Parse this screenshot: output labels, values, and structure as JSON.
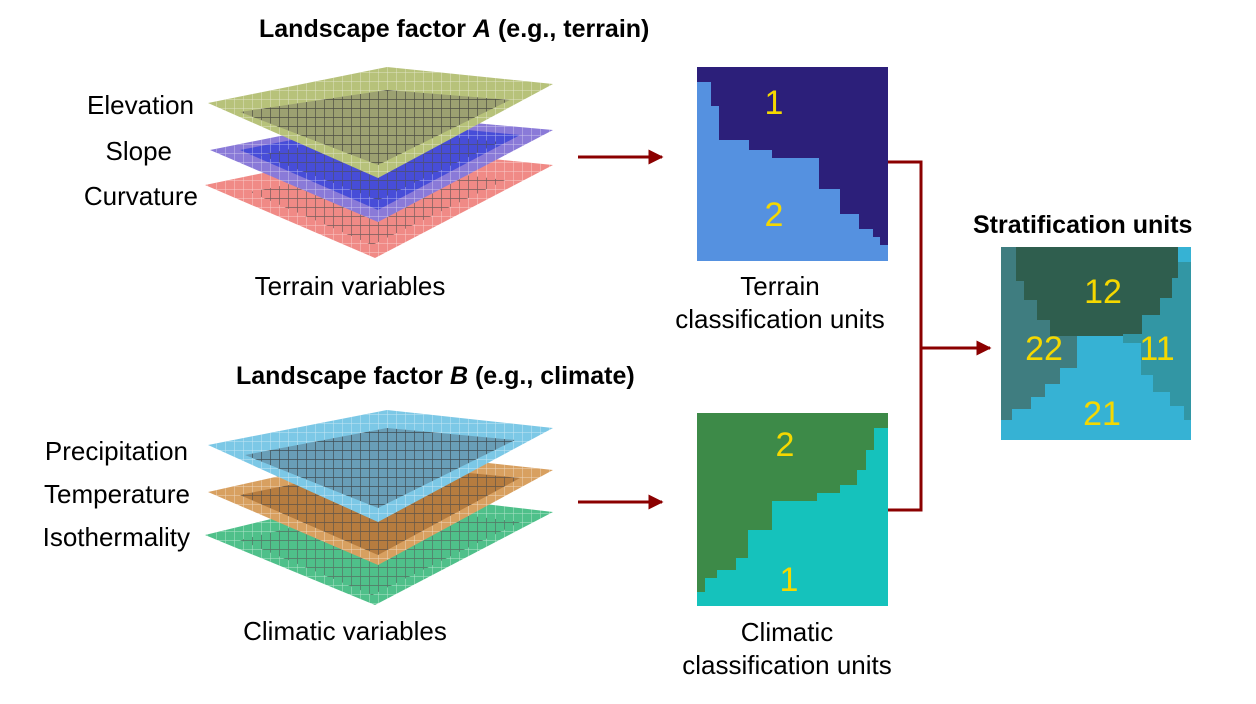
{
  "factor_a": {
    "title_prefix": "Landscape factor ",
    "title_letter": "A",
    "title_suffix": " (e.g., terrain)",
    "variables": [
      "Elevation",
      "Slope",
      "Curvature"
    ],
    "group_label": "Terrain variables",
    "unit_label_line1": "Terrain",
    "unit_label_line2": "classification units",
    "unit_numbers": [
      "1",
      "2"
    ]
  },
  "factor_b": {
    "title_prefix": "Landscape factor ",
    "title_letter": "B",
    "title_suffix": " (e.g., climate)",
    "variables": [
      "Precipitation",
      "Temperature",
      "Isothermality"
    ],
    "group_label": "Climatic variables",
    "unit_label_line1": "Climatic",
    "unit_label_line2": "classification units",
    "unit_numbers": [
      "2",
      "1"
    ]
  },
  "stratification": {
    "title": "Stratification units",
    "unit_numbers": [
      "12",
      "22",
      "11",
      "21"
    ]
  },
  "colors": {
    "terrain_dark": "#2c1f7a",
    "terrain_light": "#5591e0",
    "climate_dark": "#3d8a48",
    "climate_light": "#15c2bc",
    "strat_12": "#2f5e4e",
    "strat_22": "#3f7d80",
    "strat_11": "#3296a4",
    "strat_21": "#36b2d4",
    "arrow": "#8b0000",
    "number_text": "#f5d800",
    "layer_elevation": "#b7c27a",
    "layer_slope": "#8a7ad8",
    "layer_curvature": "#f08a86",
    "layer_precipitation": "#7cc8e6",
    "layer_temperature": "#d8a060",
    "layer_isothermality": "#4fc08a"
  }
}
